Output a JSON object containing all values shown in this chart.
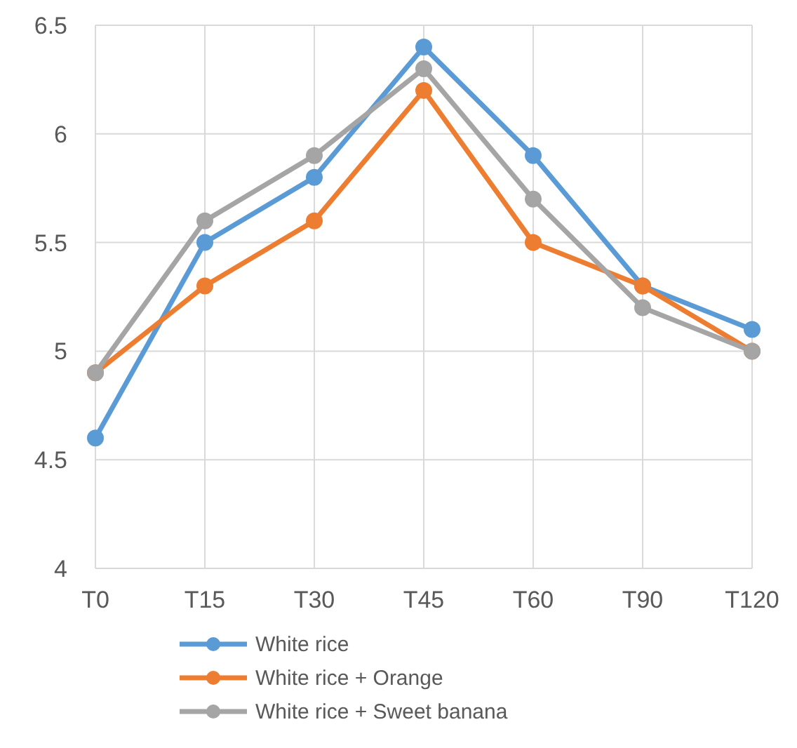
{
  "chart_data": {
    "type": "line",
    "categories": [
      "T0",
      "T15",
      "T30",
      "T45",
      "T60",
      "T90",
      "T120"
    ],
    "series": [
      {
        "name": "White rice",
        "color": "#5b9bd5",
        "values": [
          4.6,
          5.5,
          5.8,
          6.4,
          5.9,
          5.3,
          5.1
        ]
      },
      {
        "name": "White rice + Orange",
        "color": "#ed7d31",
        "values": [
          4.9,
          5.3,
          5.6,
          6.2,
          5.5,
          5.3,
          5.0
        ]
      },
      {
        "name": "White rice + Sweet banana",
        "color": "#a5a5a5",
        "values": [
          4.9,
          5.6,
          5.9,
          6.3,
          5.7,
          5.2,
          5.0
        ]
      }
    ],
    "ylim": [
      4,
      6.5
    ],
    "yticks": [
      4,
      4.5,
      5,
      5.5,
      6,
      6.5
    ],
    "grid": true,
    "legend": "bottom",
    "marker": "circle",
    "line_style": "solid"
  }
}
